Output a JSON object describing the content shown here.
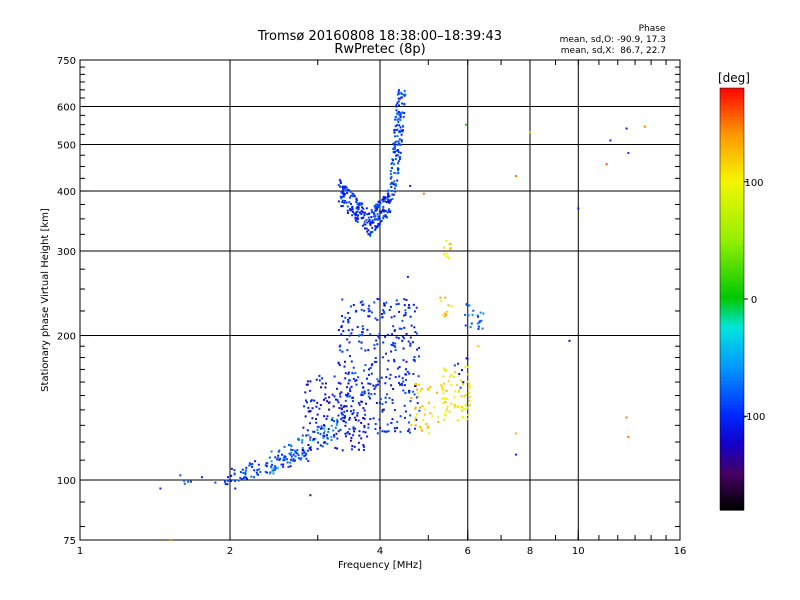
{
  "chart_data": {
    "type": "scatter",
    "title": "Tromsø 20160808 18:38:00–18:39:43",
    "subtitle": "RwPretec (8p)",
    "xlabel": "Frequency [MHz]",
    "ylabel": "Stationary phase Virtual Height [km]",
    "x_scale": "log",
    "y_scale": "log",
    "xlim": [
      1,
      16
    ],
    "ylim": [
      75,
      750
    ],
    "xticks": [
      1,
      2,
      4,
      6,
      8,
      10,
      16
    ],
    "yticks": [
      75,
      100,
      200,
      300,
      400,
      500,
      600,
      750
    ],
    "x_gridlines": [
      2,
      4,
      6,
      8,
      10
    ],
    "y_gridlines": [
      100,
      200,
      300,
      400,
      500,
      600
    ],
    "stats": {
      "title": "Phase",
      "line_o": "mean, sd,O: -90.9, 17.3",
      "line_x": "mean, sd,X:  86.7, 22.7"
    },
    "colorbar": {
      "label": "[deg]",
      "ticks": [
        100,
        0,
        -100
      ],
      "range": [
        -180,
        180
      ],
      "colormap": "rainbow"
    },
    "clusters": [
      {
        "name": "",
        "x_range": [
          1.5,
          2.1
        ],
        "y_range": [
          97,
          103
        ],
        "phase": -95,
        "density": 14,
        "shape": "band"
      },
      {
        "name": "",
        "x_range": [
          1.95,
          2.9
        ],
        "y_range": [
          101,
          120
        ],
        "phase": -95,
        "density": 90,
        "shape": "band_rising"
      },
      {
        "name": "",
        "x_range": [
          2.4,
          3.3
        ],
        "y_range": [
          108,
          140
        ],
        "phase": -70,
        "density": 80,
        "shape": "band_rising"
      },
      {
        "name": "",
        "x_range": [
          2.8,
          3.8
        ],
        "y_range": [
          115,
          165
        ],
        "phase": -115,
        "density": 160,
        "shape": "cloud"
      },
      {
        "name": "",
        "x_range": [
          3.3,
          4.8
        ],
        "y_range": [
          125,
          240
        ],
        "phase": -100,
        "density": 320,
        "shape": "cloud"
      },
      {
        "name": "",
        "x_range": [
          3.3,
          4.2
        ],
        "y_range": [
          330,
          420
        ],
        "phase": -100,
        "density": 230,
        "shape": "cusp"
      },
      {
        "name": "",
        "x_range": [
          4.0,
          4.5
        ],
        "y_range": [
          380,
          650
        ],
        "phase": -90,
        "density": 140,
        "shape": "trace_up"
      },
      {
        "name": "",
        "x_range": [
          4.6,
          5.3
        ],
        "y_range": [
          125,
          160
        ],
        "phase": 115,
        "density": 40,
        "shape": "cloud"
      },
      {
        "name": "",
        "x_range": [
          5.3,
          6.1
        ],
        "y_range": [
          132,
          172
        ],
        "phase": 100,
        "density": 70,
        "shape": "cloud"
      },
      {
        "name": "",
        "x_range": [
          5.35,
          5.55
        ],
        "y_range": [
          290,
          315
        ],
        "phase": 110,
        "density": 12,
        "shape": "cloud"
      },
      {
        "name": "",
        "x_range": [
          5.2,
          5.6
        ],
        "y_range": [
          215,
          240
        ],
        "phase": 120,
        "density": 10,
        "shape": "cloud"
      },
      {
        "name": "",
        "x_range": [
          5.9,
          6.5
        ],
        "y_range": [
          205,
          235
        ],
        "phase": -80,
        "density": 22,
        "shape": "cloud"
      },
      {
        "name": "",
        "x_range": [
          5.5,
          6.0
        ],
        "y_range": [
          155,
          185
        ],
        "phase": -105,
        "density": 8,
        "shape": "cloud"
      }
    ],
    "isolated_points": [
      {
        "x": 1.45,
        "y": 96,
        "phase": -100
      },
      {
        "x": 1.52,
        "y": 75,
        "phase": 140
      },
      {
        "x": 2.05,
        "y": 96,
        "phase": -110
      },
      {
        "x": 2.9,
        "y": 93,
        "phase": -150
      },
      {
        "x": 4.9,
        "y": 395,
        "phase": 150
      },
      {
        "x": 4.55,
        "y": 265,
        "phase": -100
      },
      {
        "x": 4.6,
        "y": 410,
        "phase": -110
      },
      {
        "x": 5.95,
        "y": 550,
        "phase": 10
      },
      {
        "x": 6.3,
        "y": 190,
        "phase": 120
      },
      {
        "x": 7.5,
        "y": 430,
        "phase": 150
      },
      {
        "x": 7.5,
        "y": 125,
        "phase": 130
      },
      {
        "x": 7.5,
        "y": 113,
        "phase": -100
      },
      {
        "x": 8.0,
        "y": 530,
        "phase": 60
      },
      {
        "x": 9.6,
        "y": 195,
        "phase": -130
      },
      {
        "x": 10.0,
        "y": 368,
        "phase": -110
      },
      {
        "x": 11.4,
        "y": 455,
        "phase": 160
      },
      {
        "x": 11.6,
        "y": 510,
        "phase": -100
      },
      {
        "x": 12.5,
        "y": 540,
        "phase": -110
      },
      {
        "x": 12.6,
        "y": 480,
        "phase": -90
      },
      {
        "x": 13.6,
        "y": 545,
        "phase": 150
      },
      {
        "x": 12.5,
        "y": 135,
        "phase": 150
      },
      {
        "x": 12.6,
        "y": 123,
        "phase": 150
      }
    ]
  }
}
